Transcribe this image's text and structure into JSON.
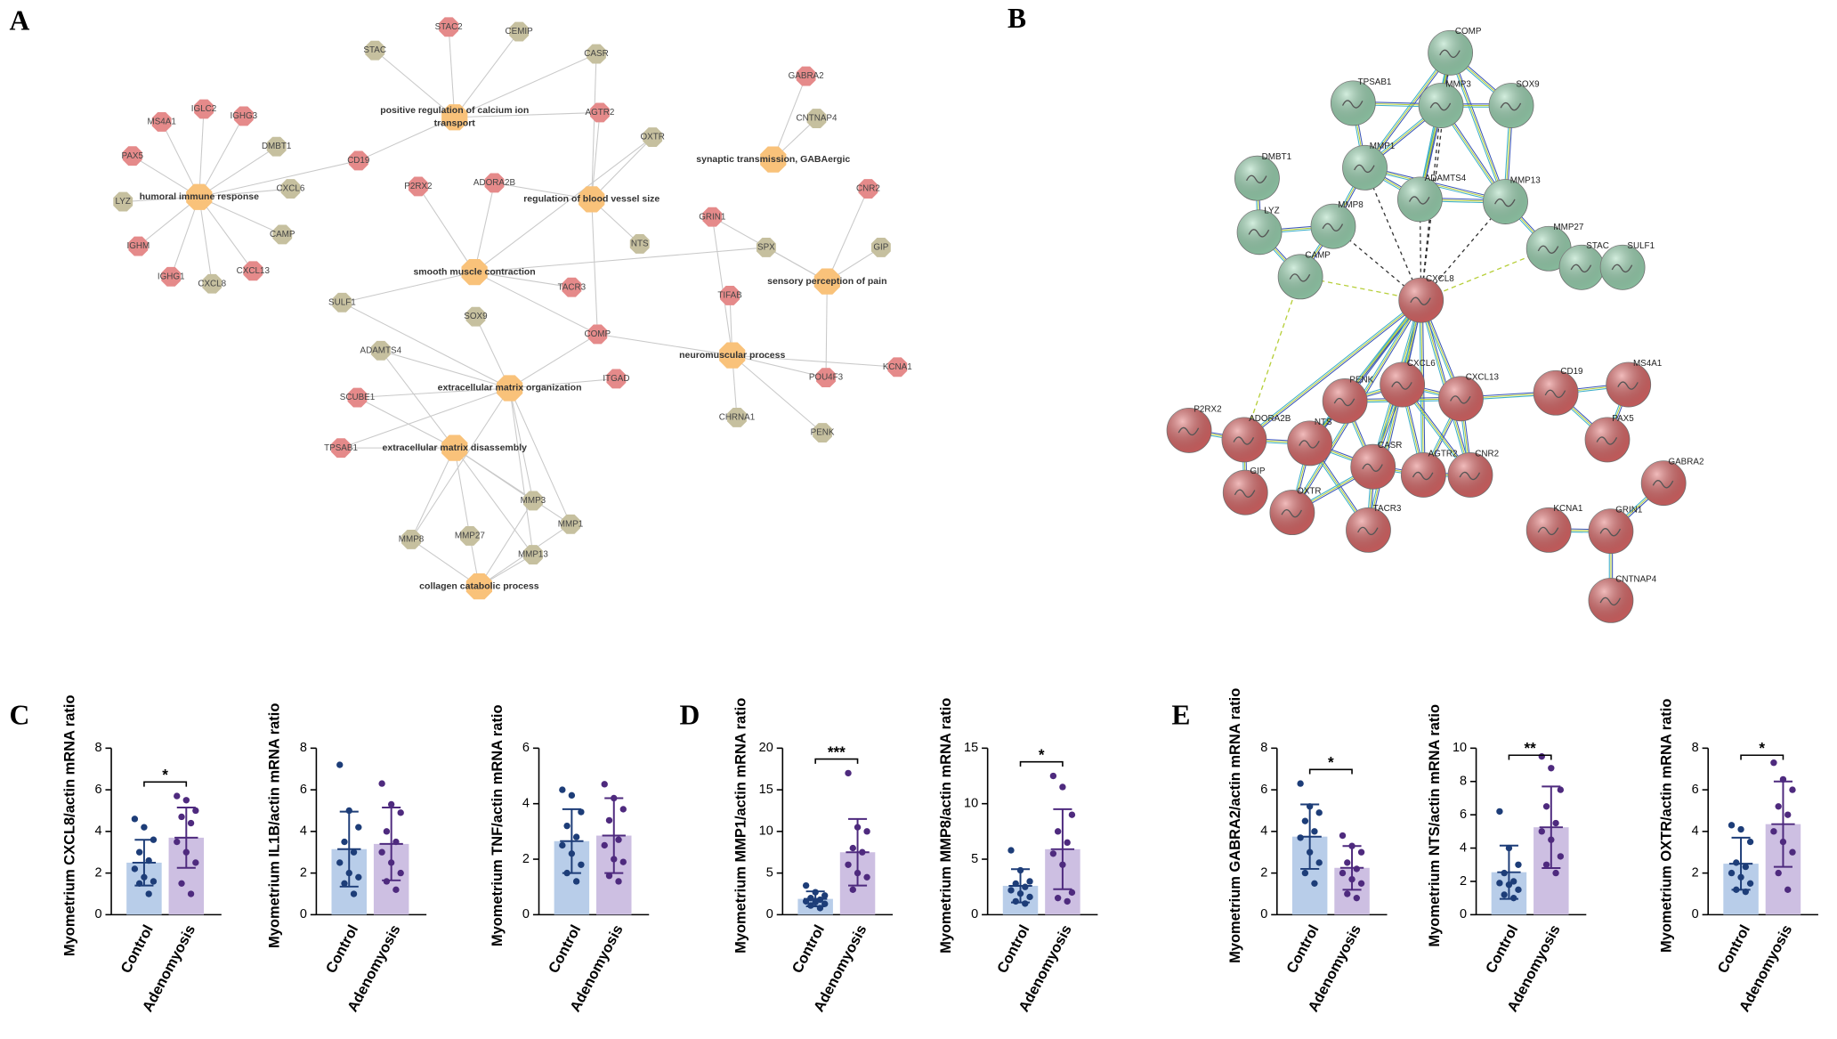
{
  "panel_labels": [
    "A",
    "B",
    "C",
    "D",
    "E"
  ],
  "network_a": {
    "terms": [
      [
        "humoral immune response"
      ],
      [
        "positive regulation of calcium ion",
        "transport"
      ],
      [
        "regulation of blood vessel size"
      ],
      [
        "synaptic transmission, GABAergic"
      ],
      [
        "smooth muscle contraction"
      ],
      [
        "sensory perception of pain"
      ],
      [
        "neuromuscular process"
      ],
      [
        "extracellular matrix organization"
      ],
      [
        "extracellular matrix disassembly"
      ],
      [
        "collagen catabolic process"
      ]
    ],
    "term_color": "#f9c27a",
    "genes": [
      {
        "label": "STAC2",
        "color": "#e58a8a"
      },
      {
        "label": "STAC",
        "color": "#c6c09f"
      },
      {
        "label": "CEMIP",
        "color": "#c6c09f"
      },
      {
        "label": "CASR",
        "color": "#c6c09f"
      },
      {
        "label": "GABRA2",
        "color": "#e58a8a"
      },
      {
        "label": "IGLC2",
        "color": "#e58a8a"
      },
      {
        "label": "IGHG3",
        "color": "#e58a8a"
      },
      {
        "label": "MS4A1",
        "color": "#e58a8a"
      },
      {
        "label": "AGTR2",
        "color": "#e58a8a"
      },
      {
        "label": "CNTNAP4",
        "color": "#c6c09f"
      },
      {
        "label": "DMBT1",
        "color": "#c6c09f"
      },
      {
        "label": "OXTR",
        "color": "#c6c09f"
      },
      {
        "label": "PAX5",
        "color": "#e58a8a"
      },
      {
        "label": "CD19",
        "color": "#e58a8a"
      },
      {
        "label": "ADORA2B",
        "color": "#e58a8a"
      },
      {
        "label": "P2RX2",
        "color": "#e58a8a"
      },
      {
        "label": "CXCL6",
        "color": "#c6c09f"
      },
      {
        "label": "CNR2",
        "color": "#e58a8a"
      },
      {
        "label": "LYZ",
        "color": "#c6c09f"
      },
      {
        "label": "GRIN1",
        "color": "#e58a8a"
      },
      {
        "label": "CAMP",
        "color": "#c6c09f"
      },
      {
        "label": "NTS",
        "color": "#c6c09f"
      },
      {
        "label": "SPX",
        "color": "#c6c09f"
      },
      {
        "label": "GIP",
        "color": "#c6c09f"
      },
      {
        "label": "IGHM",
        "color": "#e58a8a"
      },
      {
        "label": "CXCL13",
        "color": "#e58a8a"
      },
      {
        "label": "IGHG1",
        "color": "#e58a8a"
      },
      {
        "label": "CXCL8",
        "color": "#c6c09f"
      },
      {
        "label": "TACR3",
        "color": "#e58a8a"
      },
      {
        "label": "TIFAB",
        "color": "#e58a8a"
      },
      {
        "label": "SULF1",
        "color": "#c6c09f"
      },
      {
        "label": "SOX9",
        "color": "#c6c09f"
      },
      {
        "label": "COMP",
        "color": "#e58a8a"
      },
      {
        "label": "ADAMTS4",
        "color": "#c6c09f"
      },
      {
        "label": "KCNA1",
        "color": "#e58a8a"
      },
      {
        "label": "POU4F3",
        "color": "#e58a8a"
      },
      {
        "label": "ITGAD",
        "color": "#e58a8a"
      },
      {
        "label": "SCUBE1",
        "color": "#e58a8a"
      },
      {
        "label": "CHRNA1",
        "color": "#c6c09f"
      },
      {
        "label": "PENK",
        "color": "#c6c09f"
      },
      {
        "label": "TPSAB1",
        "color": "#e58a8a"
      },
      {
        "label": "MMP3",
        "color": "#c6c09f"
      },
      {
        "label": "MMP1",
        "color": "#c6c09f"
      },
      {
        "label": "MMP8",
        "color": "#c6c09f"
      },
      {
        "label": "MMP27",
        "color": "#c6c09f"
      },
      {
        "label": "MMP13",
        "color": "#c6c09f"
      }
    ]
  },
  "network_b": {
    "nodes": [
      {
        "label": "COMP",
        "color": "#9ed9b6"
      },
      {
        "label": "TPSAB1",
        "color": "#9ed9b6"
      },
      {
        "label": "MMP3",
        "color": "#9ed9b6"
      },
      {
        "label": "SOX9",
        "color": "#9ed9b6"
      },
      {
        "label": "MMP1",
        "color": "#9ed9b6"
      },
      {
        "label": "DMBT1",
        "color": "#9ed9b6"
      },
      {
        "label": "ADAMTS4",
        "color": "#9ed9b6"
      },
      {
        "label": "MMP13",
        "color": "#9ed9b6"
      },
      {
        "label": "MMP8",
        "color": "#9ed9b6"
      },
      {
        "label": "LYZ",
        "color": "#9ed9b6"
      },
      {
        "label": "MMP27",
        "color": "#9ed9b6"
      },
      {
        "label": "CAMP",
        "color": "#9ed9b6"
      },
      {
        "label": "STAC",
        "color": "#9ed9b6"
      },
      {
        "label": "SULF1",
        "color": "#9ed9b6"
      },
      {
        "label": "CXCL8",
        "color": "#e06a6a"
      },
      {
        "label": "CXCL6",
        "color": "#e06a6a"
      },
      {
        "label": "CD19",
        "color": "#e06a6a"
      },
      {
        "label": "MS4A1",
        "color": "#e06a6a"
      },
      {
        "label": "PENK",
        "color": "#e06a6a"
      },
      {
        "label": "CXCL13",
        "color": "#e06a6a"
      },
      {
        "label": "P2RX2",
        "color": "#e06a6a"
      },
      {
        "label": "ADORA2B",
        "color": "#e06a6a"
      },
      {
        "label": "NTS",
        "color": "#e06a6a"
      },
      {
        "label": "PAX5",
        "color": "#e06a6a"
      },
      {
        "label": "CASR",
        "color": "#e06a6a"
      },
      {
        "label": "AGTR2",
        "color": "#e06a6a"
      },
      {
        "label": "CNR2",
        "color": "#e06a6a"
      },
      {
        "label": "GIP",
        "color": "#e06a6a"
      },
      {
        "label": "GABRA2",
        "color": "#e06a6a"
      },
      {
        "label": "OXTR",
        "color": "#e06a6a"
      },
      {
        "label": "TACR3",
        "color": "#e06a6a"
      },
      {
        "label": "KCNA1",
        "color": "#e06a6a"
      },
      {
        "label": "GRIN1",
        "color": "#e06a6a"
      },
      {
        "label": "CNTNAP4",
        "color": "#e06a6a"
      }
    ]
  },
  "chart_data": [
    {
      "type": "bar",
      "ylabel": "Myometrium CXCL8/actin mRNA ratio",
      "categories": [
        "Control",
        "Adenomyosis"
      ],
      "values": [
        2.5,
        3.7
      ],
      "errors": [
        1.1,
        1.45
      ],
      "points": [
        [
          4.6,
          4.2,
          3.6,
          3.0,
          2.6,
          2.2,
          1.8,
          1.6,
          1.5,
          1.0
        ],
        [
          5.7,
          5.5,
          5.0,
          4.7,
          4.4,
          3.5,
          3.0,
          2.5,
          1.5,
          1.0
        ]
      ],
      "significance": "*",
      "ylim": [
        0,
        8
      ],
      "yticks": [
        0,
        2,
        4,
        6,
        8
      ],
      "colors": [
        "#b8cde9",
        "#cdbfe2"
      ],
      "point_colors": [
        "#1d3d78",
        "#4e2a7e"
      ]
    },
    {
      "type": "bar",
      "ylabel": "Myometrium IL1B/actin mRNA ratio",
      "categories": [
        "Control",
        "Adenomyosis"
      ],
      "values": [
        3.15,
        3.4
      ],
      "errors": [
        1.8,
        1.75
      ],
      "points": [
        [
          7.2,
          5.0,
          4.2,
          3.5,
          3.0,
          2.5,
          2.0,
          1.8,
          1.5,
          1.0
        ],
        [
          6.3,
          5.3,
          4.9,
          4.0,
          3.5,
          3.0,
          2.5,
          2.0,
          1.6,
          1.2
        ]
      ],
      "ylim": [
        0,
        8
      ],
      "yticks": [
        0,
        2,
        4,
        6,
        8
      ],
      "colors": [
        "#b8cde9",
        "#cdbfe2"
      ],
      "point_colors": [
        "#1d3d78",
        "#4e2a7e"
      ]
    },
    {
      "type": "bar",
      "ylabel": "Myometrium TNF/actin mRNA ratio",
      "categories": [
        "Control",
        "Adenomyosis"
      ],
      "values": [
        2.65,
        2.85
      ],
      "errors": [
        1.15,
        1.35
      ],
      "points": [
        [
          4.5,
          4.3,
          3.7,
          3.2,
          2.8,
          2.5,
          2.2,
          1.8,
          1.5,
          1.2
        ],
        [
          4.7,
          4.2,
          3.8,
          3.4,
          2.7,
          2.5,
          2.0,
          1.9,
          1.4,
          1.2
        ]
      ],
      "ylim": [
        0,
        6
      ],
      "yticks": [
        0,
        2,
        4,
        6
      ],
      "colors": [
        "#b8cde9",
        "#cdbfe2"
      ],
      "point_colors": [
        "#1d3d78",
        "#4e2a7e"
      ]
    },
    {
      "type": "bar",
      "ylabel": "Myometrium MMP1/actin mRNA ratio",
      "categories": [
        "Control",
        "Adenomyosis"
      ],
      "values": [
        1.9,
        7.5
      ],
      "errors": [
        0.9,
        4.0
      ],
      "points": [
        [
          3.5,
          2.7,
          2.3,
          2.0,
          1.8,
          1.6,
          1.5,
          1.3,
          1.1,
          0.8
        ],
        [
          17.0,
          10.5,
          10.0,
          8.0,
          7.5,
          6.0,
          5.0,
          4.5,
          3.0
        ]
      ],
      "significance": "***",
      "ylim": [
        0,
        20
      ],
      "yticks": [
        0,
        5,
        10,
        15,
        20
      ],
      "colors": [
        "#b8cde9",
        "#cdbfe2"
      ],
      "point_colors": [
        "#1d3d78",
        "#4e2a7e"
      ]
    },
    {
      "type": "bar",
      "ylabel": "Myometrium MMP8/actin mRNA ratio",
      "categories": [
        "Control",
        "Adenomyosis"
      ],
      "values": [
        2.6,
        5.9
      ],
      "errors": [
        1.5,
        3.6
      ],
      "points": [
        [
          5.8,
          4.0,
          3.0,
          2.8,
          2.5,
          2.2,
          1.9,
          1.6,
          1.2,
          1.0
        ],
        [
          12.5,
          11.5,
          9.0,
          7.5,
          6.5,
          5.5,
          4.5,
          2.0,
          1.5,
          1.2
        ]
      ],
      "significance": "*",
      "ylim": [
        0,
        15
      ],
      "yticks": [
        0,
        5,
        10,
        15
      ],
      "colors": [
        "#b8cde9",
        "#cdbfe2"
      ],
      "point_colors": [
        "#1d3d78",
        "#4e2a7e"
      ]
    },
    {
      "type": "bar",
      "ylabel": "Myometrium GABRA2/actin mRNA ratio",
      "categories": [
        "Control",
        "Adenomyosis"
      ],
      "values": [
        3.75,
        2.25
      ],
      "errors": [
        1.55,
        1.05
      ],
      "points": [
        [
          6.3,
          5.2,
          4.9,
          4.5,
          4.0,
          3.7,
          3.0,
          2.5,
          2.0,
          1.5
        ],
        [
          3.8,
          3.3,
          3.0,
          2.5,
          2.2,
          2.0,
          1.7,
          1.5,
          1.0,
          0.8
        ]
      ],
      "significance": "*",
      "ylim": [
        0,
        8
      ],
      "yticks": [
        0,
        2,
        4,
        6,
        8
      ],
      "colors": [
        "#b8cde9",
        "#cdbfe2"
      ],
      "point_colors": [
        "#1d3d78",
        "#4e2a7e"
      ]
    },
    {
      "type": "bar",
      "ylabel": "Myometrium NTS/actin mRNA ratio",
      "categories": [
        "Control",
        "Adenomyosis"
      ],
      "values": [
        2.55,
        5.25
      ],
      "errors": [
        1.6,
        2.45
      ],
      "points": [
        [
          6.2,
          4.0,
          3.0,
          2.5,
          2.0,
          1.9,
          1.8,
          1.5,
          1.2,
          1.0
        ],
        [
          9.5,
          8.8,
          7.5,
          6.5,
          5.5,
          5.0,
          4.5,
          3.5,
          3.0,
          2.5
        ]
      ],
      "significance": "**",
      "ylim": [
        0,
        10
      ],
      "yticks": [
        0,
        2,
        4,
        6,
        8,
        10
      ],
      "colors": [
        "#b8cde9",
        "#cdbfe2"
      ],
      "point_colors": [
        "#1d3d78",
        "#4e2a7e"
      ]
    },
    {
      "type": "bar",
      "ylabel": "Myometrium OXTR/actin mRNA ratio",
      "categories": [
        "Control",
        "Adenomyosis"
      ],
      "values": [
        2.45,
        4.35
      ],
      "errors": [
        1.25,
        2.05
      ],
      "points": [
        [
          4.3,
          4.1,
          3.5,
          2.5,
          2.3,
          2.0,
          1.8,
          1.5,
          1.2,
          1.1
        ],
        [
          7.3,
          6.5,
          6.0,
          5.2,
          4.8,
          4.0,
          3.5,
          3.0,
          2.0,
          1.2
        ]
      ],
      "significance": "*",
      "ylim": [
        0,
        8
      ],
      "yticks": [
        0,
        2,
        4,
        6,
        8
      ],
      "colors": [
        "#b8cde9",
        "#cdbfe2"
      ],
      "point_colors": [
        "#1d3d78",
        "#4e2a7e"
      ]
    }
  ]
}
